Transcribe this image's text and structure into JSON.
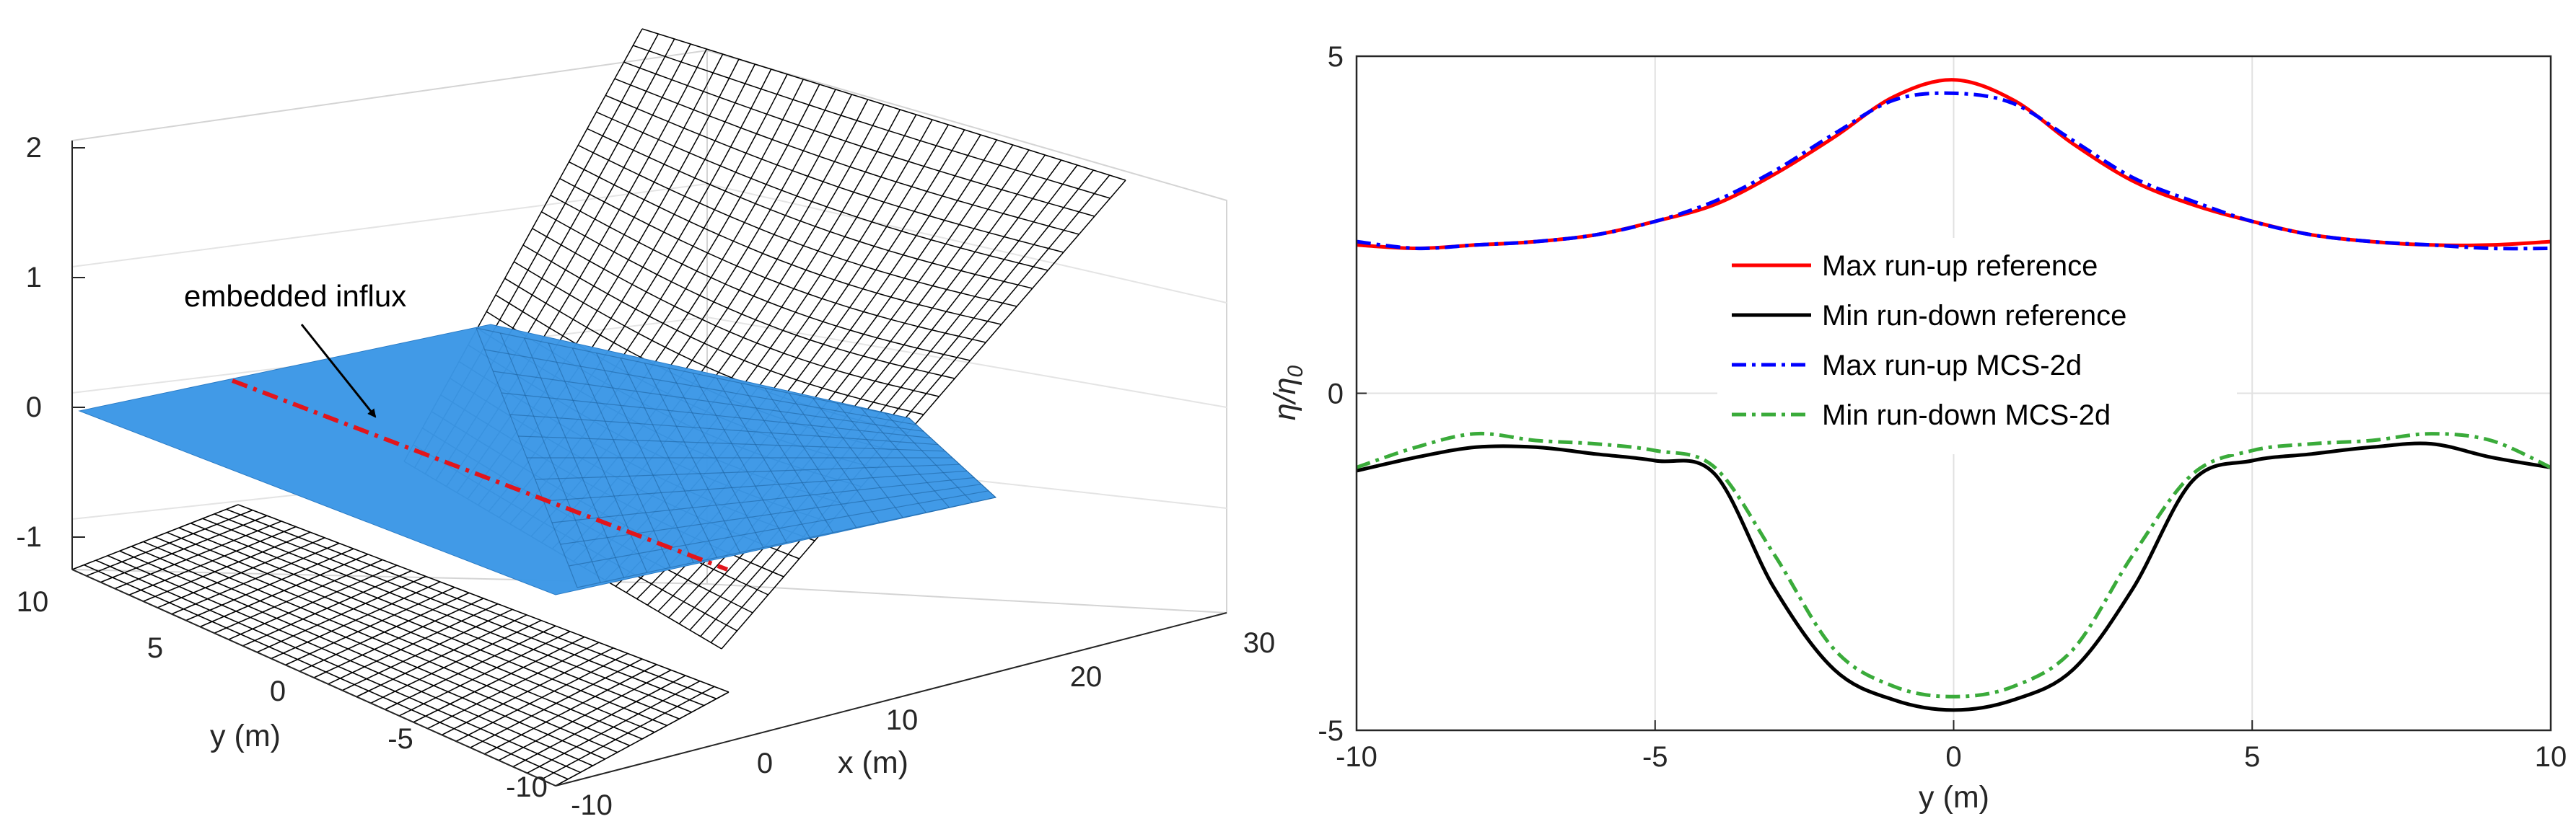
{
  "chart_data": [
    {
      "type": "surface",
      "xlabel": "x (m)",
      "ylabel": "y (m)",
      "x_ticks": [
        "-10",
        "0",
        "10",
        "20",
        "30"
      ],
      "y_ticks": [
        "10",
        "5",
        "0",
        "-5",
        "-10"
      ],
      "z_ticks": [
        "2",
        "1",
        "0",
        "-1"
      ],
      "x_range": [
        -10,
        30
      ],
      "y_range": [
        -10,
        10
      ],
      "z_range": [
        -1.3,
        2
      ],
      "annotation": "embedded influx",
      "influx_line_x": -2,
      "colors": {
        "surface": "#3b97e6",
        "mesh": "#000000",
        "influx": "#e2151b"
      }
    },
    {
      "type": "line",
      "xlabel": "y (m)",
      "ylabel": "η/η0",
      "ylabel_main": "η/η",
      "ylabel_sub": "0",
      "xlim": [
        -10,
        10
      ],
      "ylim": [
        -5,
        5
      ],
      "x_ticks": [
        "-10",
        "-5",
        "0",
        "5",
        "10"
      ],
      "y_ticks": [
        "5",
        "0",
        "-5"
      ],
      "grid": true,
      "legend_position": "center",
      "x": [
        -10,
        -9,
        -8,
        -7,
        -6,
        -5,
        -4,
        -3,
        -2,
        -1,
        0,
        1,
        2,
        3,
        4,
        5,
        6,
        7,
        8,
        9,
        10
      ],
      "series": [
        {
          "name": "Max run-up reference",
          "color": "#ff0000",
          "style": "solid",
          "values": [
            2.2,
            2.15,
            2.2,
            2.25,
            2.35,
            2.55,
            2.8,
            3.25,
            3.8,
            4.4,
            4.65,
            4.35,
            3.7,
            3.15,
            2.8,
            2.55,
            2.35,
            2.25,
            2.2,
            2.2,
            2.25
          ]
        },
        {
          "name": "Min run-down reference",
          "color": "#000000",
          "style": "solid",
          "values": [
            -1.15,
            -0.95,
            -0.8,
            -0.8,
            -0.9,
            -1.0,
            -1.2,
            -2.9,
            -4.1,
            -4.55,
            -4.7,
            -4.55,
            -4.1,
            -2.9,
            -1.3,
            -1.0,
            -0.9,
            -0.8,
            -0.75,
            -0.95,
            -1.1
          ]
        },
        {
          "name": "Max run-up MCS-2d",
          "color": "#0000ff",
          "style": "dashdot",
          "values": [
            2.25,
            2.15,
            2.2,
            2.25,
            2.35,
            2.55,
            2.85,
            3.3,
            3.85,
            4.35,
            4.45,
            4.3,
            3.75,
            3.2,
            2.85,
            2.55,
            2.35,
            2.25,
            2.2,
            2.15,
            2.15
          ]
        },
        {
          "name": "Min run-down MCS-2d",
          "color": "#3aab3a",
          "style": "dashdot",
          "values": [
            -1.1,
            -0.8,
            -0.6,
            -0.7,
            -0.75,
            -0.85,
            -1.1,
            -2.4,
            -3.8,
            -4.35,
            -4.5,
            -4.35,
            -3.8,
            -2.4,
            -1.2,
            -0.85,
            -0.75,
            -0.7,
            -0.6,
            -0.7,
            -1.1
          ]
        }
      ]
    }
  ]
}
